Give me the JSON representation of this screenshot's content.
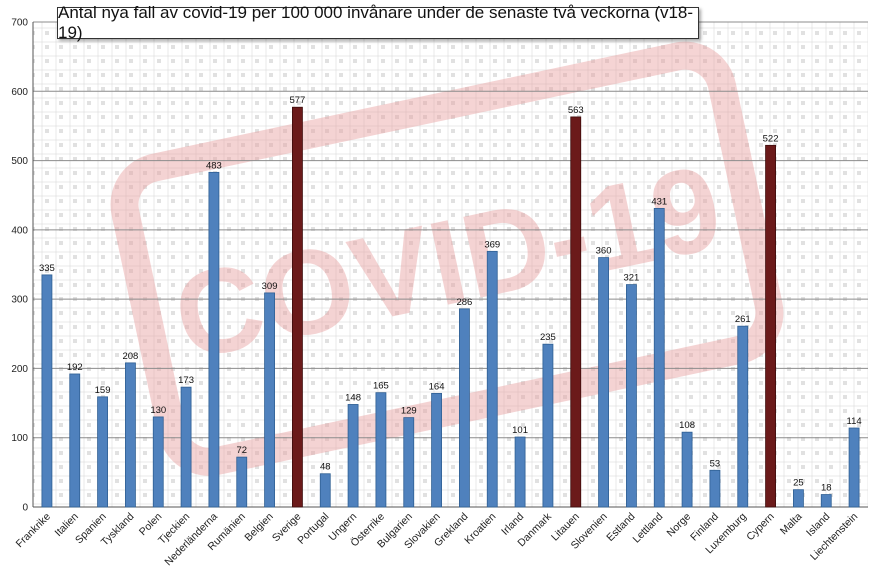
{
  "chart_data": {
    "type": "bar",
    "title": "Antal nya fall av covid-19 per 100 000 invånare under de senaste två veckorna (v18-19)",
    "xlabel": "",
    "ylabel": "",
    "ylim": [
      0,
      700
    ],
    "yticks": [
      0,
      100,
      200,
      300,
      400,
      500,
      600,
      700
    ],
    "grid": true,
    "categories": [
      "Frankrike",
      "Italien",
      "Spanien",
      "Tyskland",
      "Polen",
      "Tjeckien",
      "Nederländerna",
      "Rumänien",
      "Belgien",
      "Sverige",
      "Portugal",
      "Ungern",
      "Österrike",
      "Bulgarien",
      "Slovakien",
      "Grekland",
      "Kroatien",
      "Irland",
      "Danmark",
      "Litauen",
      "Slovenien",
      "Estland",
      "Lettland",
      "Norge",
      "Finland",
      "Luxemburg",
      "Cypern",
      "Malta",
      "Island",
      "Liechtenstein"
    ],
    "values": [
      335,
      192,
      159,
      208,
      130,
      173,
      483,
      72,
      309,
      577,
      48,
      148,
      165,
      129,
      164,
      286,
      369,
      101,
      235,
      563,
      360,
      321,
      431,
      108,
      53,
      261,
      522,
      25,
      18,
      114
    ],
    "highlighted": [
      "Sverige",
      "Litauen",
      "Cypern"
    ],
    "colors": {
      "bar": "#4f81bd",
      "bar_border": "#2f5f93",
      "highlight": "#6b1a1a",
      "highlight_border": "#3d0c0c",
      "grid": "#8c8c8c",
      "watermark": "#e8a0a0",
      "map_pattern": "#c8c8c8"
    },
    "watermark_text": "COVID-19"
  }
}
